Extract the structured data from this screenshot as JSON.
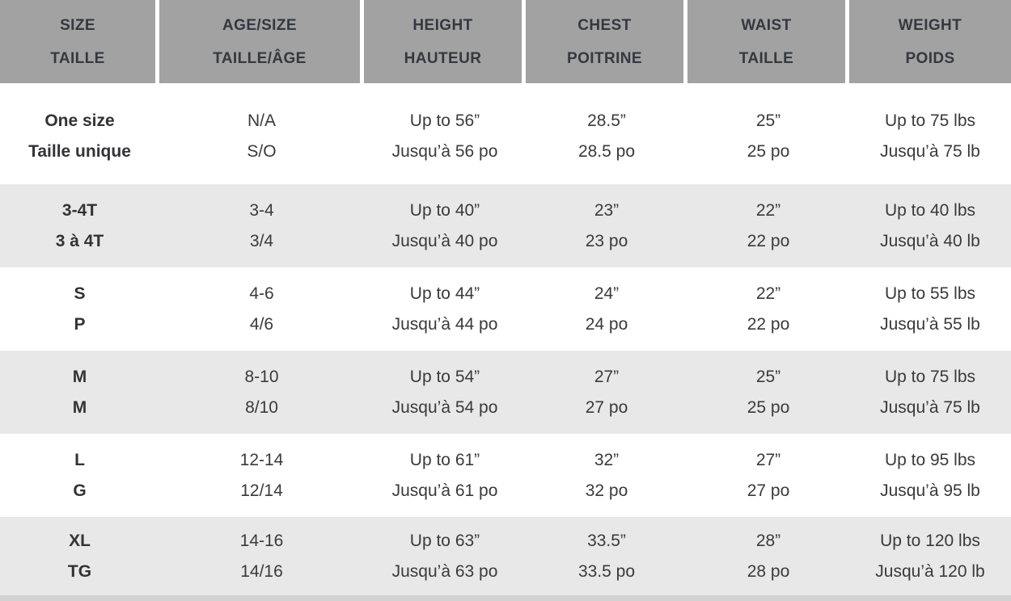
{
  "theme": {
    "header_bg": "#a2a2a2",
    "header_text": "#343840",
    "row_alt_bg": "#e8e8e8",
    "body_text": "#3a3a3c",
    "bottom_edge": "#d2d2d2",
    "separator": "#ffffff"
  },
  "table": {
    "columns": [
      {
        "en": "SIZE",
        "fr": "TAILLE"
      },
      {
        "en": "AGE/SIZE",
        "fr": "TAILLE/ÂGE"
      },
      {
        "en": "HEIGHT",
        "fr": "HAUTEUR"
      },
      {
        "en": "CHEST",
        "fr": "POITRINE"
      },
      {
        "en": "WAIST",
        "fr": "TAILLE"
      },
      {
        "en": "WEIGHT",
        "fr": "POIDS"
      }
    ],
    "rows": [
      {
        "cells": [
          {
            "en": "One size",
            "fr": "Taille unique"
          },
          {
            "en": "N/A",
            "fr": "S/O"
          },
          {
            "en": "Up to 56”",
            "fr": "Jusqu’à 56 po"
          },
          {
            "en": "28.5”",
            "fr": "28.5 po"
          },
          {
            "en": "25”",
            "fr": "25 po"
          },
          {
            "en": "Up to 75 lbs",
            "fr": "Jusqu’à 75 lb"
          }
        ]
      },
      {
        "cells": [
          {
            "en": "3-4T",
            "fr": "3 à 4T"
          },
          {
            "en": "3-4",
            "fr": "3/4"
          },
          {
            "en": "Up to 40”",
            "fr": "Jusqu’à 40 po"
          },
          {
            "en": "23”",
            "fr": "23 po"
          },
          {
            "en": "22”",
            "fr": "22 po"
          },
          {
            "en": "Up to 40 lbs",
            "fr": "Jusqu’à 40 lb"
          }
        ]
      },
      {
        "cells": [
          {
            "en": "S",
            "fr": "P"
          },
          {
            "en": "4-6",
            "fr": "4/6"
          },
          {
            "en": "Up to 44”",
            "fr": "Jusqu’à 44 po"
          },
          {
            "en": "24”",
            "fr": "24 po"
          },
          {
            "en": "22”",
            "fr": "22 po"
          },
          {
            "en": "Up to 55 lbs",
            "fr": "Jusqu’à 55 lb"
          }
        ]
      },
      {
        "cells": [
          {
            "en": "M",
            "fr": "M"
          },
          {
            "en": "8-10",
            "fr": "8/10"
          },
          {
            "en": "Up to 54”",
            "fr": "Jusqu’à 54 po"
          },
          {
            "en": "27”",
            "fr": "27 po"
          },
          {
            "en": "25”",
            "fr": "25 po"
          },
          {
            "en": "Up to 75 lbs",
            "fr": "Jusqu’à 75 lb"
          }
        ]
      },
      {
        "cells": [
          {
            "en": "L",
            "fr": "G"
          },
          {
            "en": "12-14",
            "fr": "12/14"
          },
          {
            "en": "Up to 61”",
            "fr": "Jusqu’à 61 po"
          },
          {
            "en": "32”",
            "fr": "32 po"
          },
          {
            "en": "27”",
            "fr": "27 po"
          },
          {
            "en": "Up to 95 lbs",
            "fr": "Jusqu’à 95 lb"
          }
        ]
      },
      {
        "cells": [
          {
            "en": "XL",
            "fr": "TG"
          },
          {
            "en": "14-16",
            "fr": "14/16"
          },
          {
            "en": "Up to 63”",
            "fr": "Jusqu’à 63 po"
          },
          {
            "en": "33.5”",
            "fr": "33.5 po"
          },
          {
            "en": "28”",
            "fr": "28 po"
          },
          {
            "en": "Up to 120 lbs",
            "fr": "Jusqu’à 120 lb"
          }
        ]
      }
    ]
  }
}
